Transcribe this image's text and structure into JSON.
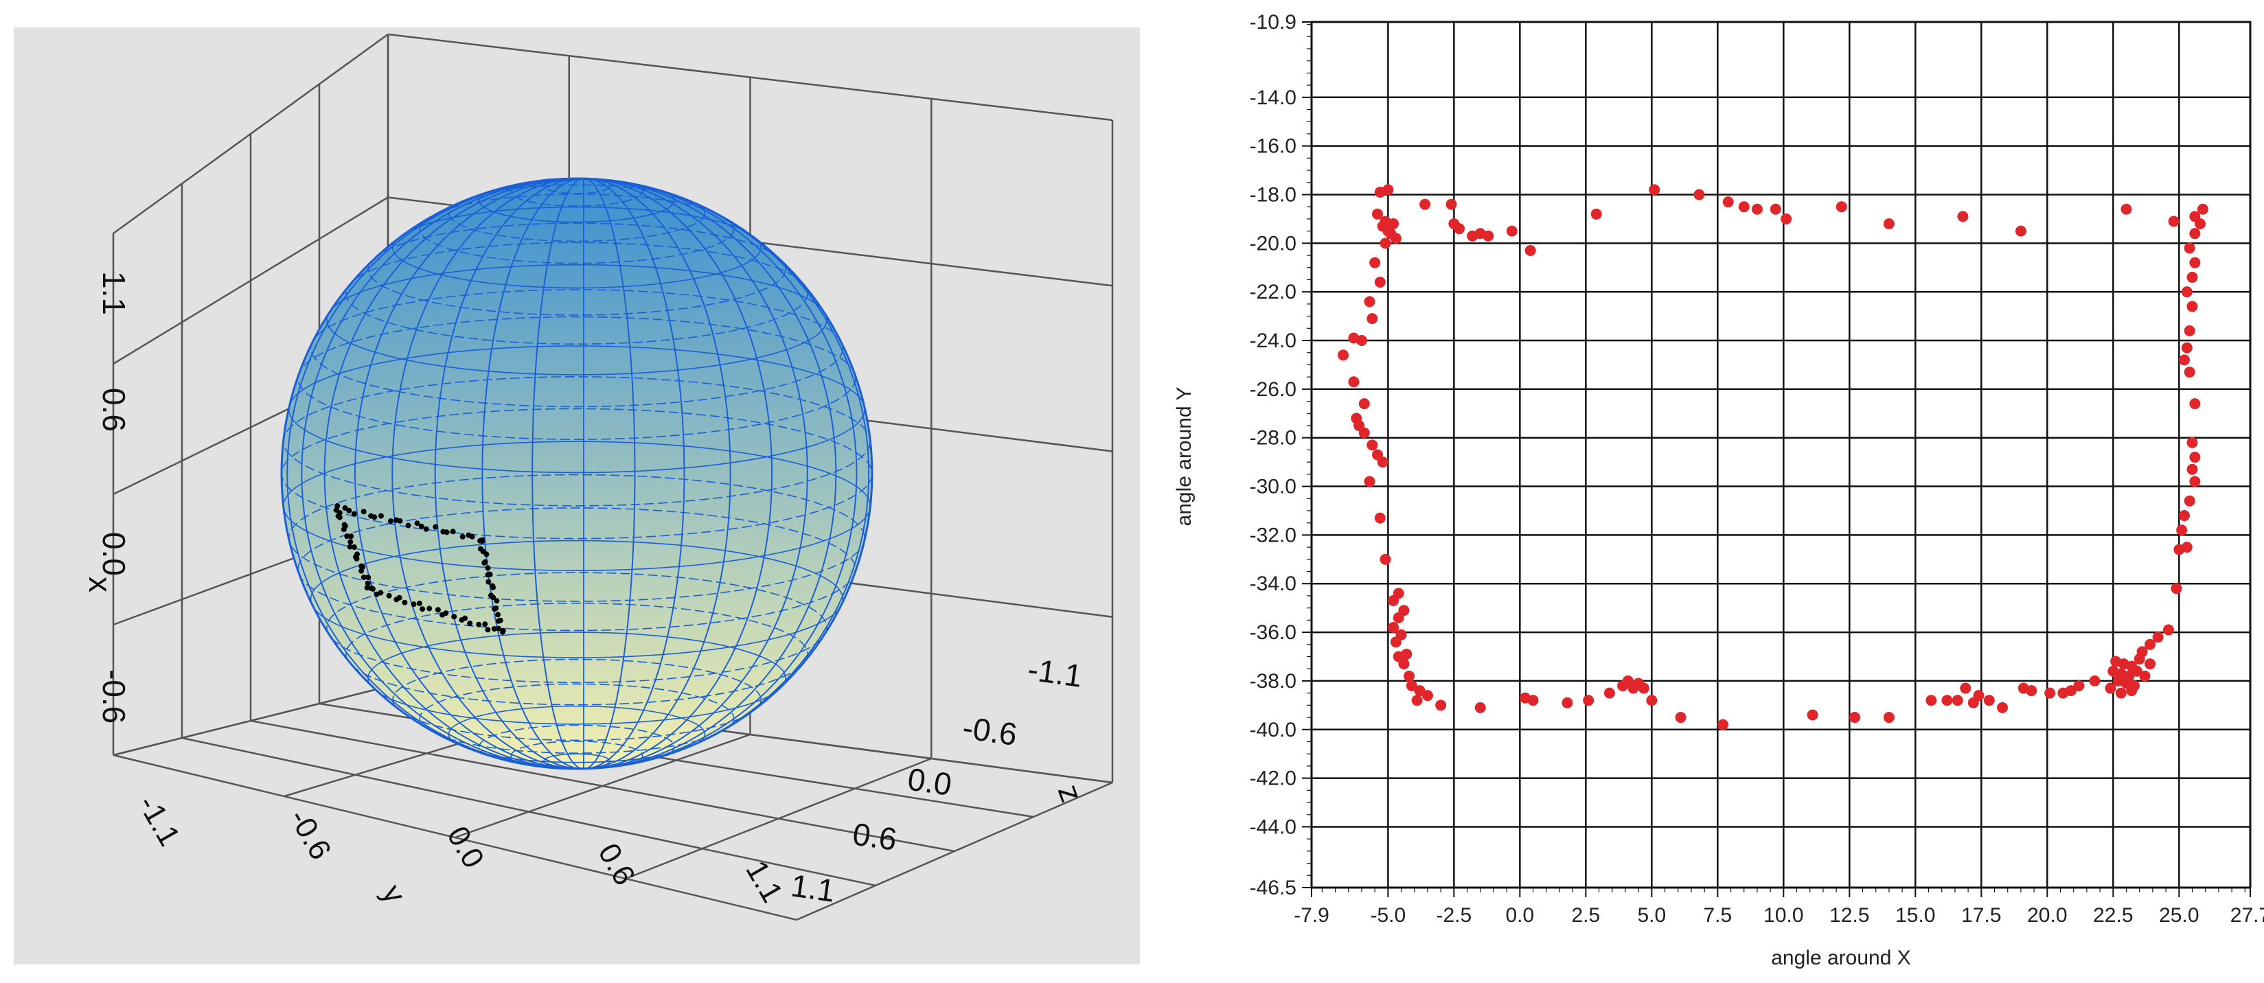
{
  "chart_data": [
    {
      "type": "3d-surface",
      "surface": "sphere",
      "surface_color_top": "#3a8fd0",
      "surface_color_bottom": "#f4f0b0",
      "wire_color": "#1a5fd8",
      "trace_color": "#000000",
      "panel_background": "#e2e2e2",
      "axes": {
        "vertical": {
          "label": "x",
          "ticks": [
            "1.1",
            "0.6",
            "0.0",
            "-0.6"
          ]
        },
        "front": {
          "label": "y",
          "ticks": [
            "-1.1",
            "-0.6",
            "0.0",
            "0.6",
            "1.1"
          ]
        },
        "right": {
          "label": "z",
          "ticks": [
            "-1.1",
            "-0.6",
            "0.0",
            "0.6",
            "1.1"
          ]
        }
      }
    },
    {
      "type": "scatter",
      "xlabel": "angle around X",
      "ylabel": "angle around Y",
      "xlim": [
        -7.9,
        27.7
      ],
      "ylim": [
        -46.5,
        -10.9
      ],
      "x_ticks": [
        "-7.9",
        "-5.0",
        "-2.5",
        "0.0",
        "2.5",
        "5.0",
        "7.5",
        "10.0",
        "12.5",
        "15.0",
        "17.5",
        "20.0",
        "22.5",
        "25.0",
        "27.7"
      ],
      "y_ticks": [
        "-10.9",
        "-14.0",
        "-16.0",
        "-18.0",
        "-20.0",
        "-22.0",
        "-24.0",
        "-26.0",
        "-28.0",
        "-30.0",
        "-32.0",
        "-34.0",
        "-36.0",
        "-38.0",
        "-40.0",
        "-42.0",
        "-44.0",
        "-46.5"
      ],
      "marker_color": "#e0262a",
      "grid": true,
      "points": [
        [
          -5.3,
          -17.9
        ],
        [
          -5.0,
          -17.8
        ],
        [
          -5.4,
          -18.8
        ],
        [
          -5.1,
          -19.1
        ],
        [
          -4.8,
          -19.2
        ],
        [
          -4.9,
          -19.6
        ],
        [
          -4.7,
          -19.8
        ],
        [
          -5.2,
          -19.3
        ],
        [
          -3.6,
          -18.4
        ],
        [
          -2.6,
          -18.4
        ],
        [
          -2.5,
          -19.2
        ],
        [
          -2.3,
          -19.4
        ],
        [
          -1.8,
          -19.7
        ],
        [
          -1.5,
          -19.6
        ],
        [
          -1.2,
          -19.7
        ],
        [
          -0.3,
          -19.5
        ],
        [
          0.4,
          -20.3
        ],
        [
          2.9,
          -18.8
        ],
        [
          5.1,
          -17.8
        ],
        [
          6.8,
          -18.0
        ],
        [
          7.9,
          -18.3
        ],
        [
          8.5,
          -18.5
        ],
        [
          9.0,
          -18.6
        ],
        [
          9.7,
          -18.6
        ],
        [
          10.1,
          -19.0
        ],
        [
          12.2,
          -18.5
        ],
        [
          14.0,
          -19.2
        ],
        [
          16.8,
          -18.9
        ],
        [
          19.0,
          -19.5
        ],
        [
          23.0,
          -18.6
        ],
        [
          24.8,
          -19.1
        ],
        [
          25.6,
          -18.9
        ],
        [
          25.9,
          -18.6
        ],
        [
          25.8,
          -19.2
        ],
        [
          25.6,
          -19.6
        ],
        [
          25.4,
          -20.2
        ],
        [
          25.6,
          -20.8
        ],
        [
          25.5,
          -21.4
        ],
        [
          25.3,
          -22.0
        ],
        [
          25.5,
          -22.6
        ],
        [
          25.4,
          -23.6
        ],
        [
          25.3,
          -24.3
        ],
        [
          25.2,
          -24.8
        ],
        [
          25.4,
          -25.3
        ],
        [
          25.6,
          -26.6
        ],
        [
          25.5,
          -28.2
        ],
        [
          25.6,
          -28.8
        ],
        [
          25.5,
          -29.3
        ],
        [
          25.6,
          -29.8
        ],
        [
          25.4,
          -30.6
        ],
        [
          25.2,
          -31.2
        ],
        [
          25.1,
          -31.8
        ],
        [
          25.3,
          -32.5
        ],
        [
          25.0,
          -32.6
        ],
        [
          24.9,
          -34.2
        ],
        [
          24.6,
          -35.9
        ],
        [
          24.2,
          -36.2
        ],
        [
          23.9,
          -36.5
        ],
        [
          23.6,
          -36.8
        ],
        [
          23.9,
          -37.3
        ],
        [
          23.5,
          -37.1
        ],
        [
          23.2,
          -37.4
        ],
        [
          22.9,
          -37.3
        ],
        [
          22.6,
          -37.2
        ],
        [
          22.5,
          -37.6
        ],
        [
          22.8,
          -37.7
        ],
        [
          23.1,
          -37.8
        ],
        [
          23.4,
          -37.6
        ],
        [
          23.7,
          -37.8
        ],
        [
          22.7,
          -38.0
        ],
        [
          23.0,
          -38.1
        ],
        [
          23.3,
          -38.2
        ],
        [
          22.4,
          -38.3
        ],
        [
          22.8,
          -38.5
        ],
        [
          23.2,
          -38.4
        ],
        [
          21.8,
          -38.0
        ],
        [
          21.2,
          -38.2
        ],
        [
          20.9,
          -38.4
        ],
        [
          20.6,
          -38.5
        ],
        [
          20.1,
          -38.5
        ],
        [
          19.4,
          -38.4
        ],
        [
          19.1,
          -38.3
        ],
        [
          18.3,
          -39.1
        ],
        [
          17.8,
          -38.8
        ],
        [
          17.4,
          -38.6
        ],
        [
          17.2,
          -38.9
        ],
        [
          16.9,
          -38.3
        ],
        [
          16.6,
          -38.8
        ],
        [
          16.2,
          -38.8
        ],
        [
          15.6,
          -38.8
        ],
        [
          14.0,
          -39.5
        ],
        [
          12.7,
          -39.5
        ],
        [
          11.1,
          -39.4
        ],
        [
          7.7,
          -39.8
        ],
        [
          6.1,
          -39.5
        ],
        [
          5.0,
          -38.8
        ],
        [
          4.7,
          -38.3
        ],
        [
          4.5,
          -38.1
        ],
        [
          4.3,
          -38.3
        ],
        [
          4.1,
          -38.0
        ],
        [
          3.9,
          -38.2
        ],
        [
          3.4,
          -38.5
        ],
        [
          2.6,
          -38.8
        ],
        [
          1.8,
          -38.9
        ],
        [
          0.5,
          -38.8
        ],
        [
          0.2,
          -38.7
        ],
        [
          -1.5,
          -39.1
        ],
        [
          -3.0,
          -39.0
        ],
        [
          -3.5,
          -38.6
        ],
        [
          -3.8,
          -38.4
        ],
        [
          -3.9,
          -38.8
        ],
        [
          -4.1,
          -38.2
        ],
        [
          -4.2,
          -37.8
        ],
        [
          -4.4,
          -37.3
        ],
        [
          -4.6,
          -37.0
        ],
        [
          -4.3,
          -36.9
        ],
        [
          -4.7,
          -36.4
        ],
        [
          -4.5,
          -36.1
        ],
        [
          -4.8,
          -35.8
        ],
        [
          -4.6,
          -35.4
        ],
        [
          -4.4,
          -35.1
        ],
        [
          -4.8,
          -34.7
        ],
        [
          -4.6,
          -34.4
        ],
        [
          -5.1,
          -33.0
        ],
        [
          -5.3,
          -31.3
        ],
        [
          -5.7,
          -29.8
        ],
        [
          -5.2,
          -29.0
        ],
        [
          -5.4,
          -28.7
        ],
        [
          -5.6,
          -28.3
        ],
        [
          -5.9,
          -27.8
        ],
        [
          -6.1,
          -27.5
        ],
        [
          -6.2,
          -27.2
        ],
        [
          -5.9,
          -26.6
        ],
        [
          -6.3,
          -25.7
        ],
        [
          -6.0,
          -24.0
        ],
        [
          -6.3,
          -23.9
        ],
        [
          -6.7,
          -24.6
        ],
        [
          -5.6,
          -23.1
        ],
        [
          -5.7,
          -22.4
        ],
        [
          -5.3,
          -21.6
        ],
        [
          -5.5,
          -20.8
        ],
        [
          -5.1,
          -20.0
        ],
        [
          -5.0,
          -19.5
        ]
      ]
    }
  ]
}
